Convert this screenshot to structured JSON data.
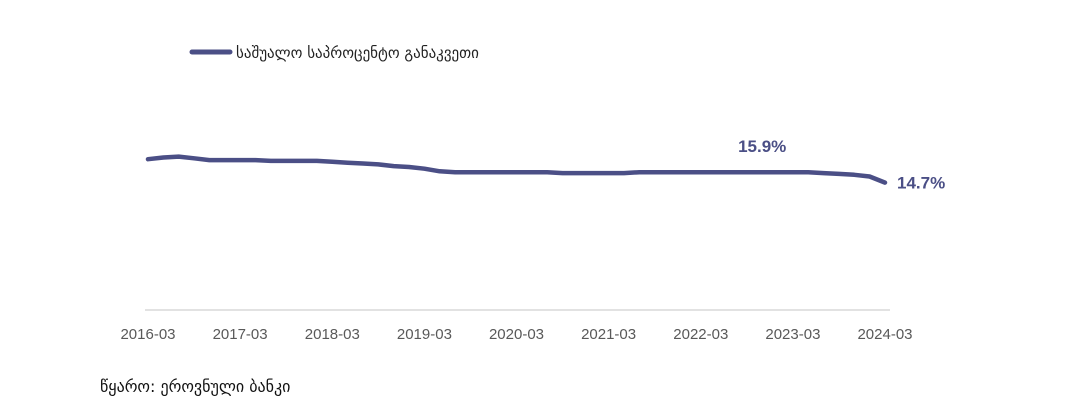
{
  "chart_data": {
    "type": "line",
    "series": [
      {
        "name": "საშუალო საპროცენტო განაკვეთი",
        "color": "#4b4f86",
        "x": [
          "2016-03",
          "2016-05",
          "2016-07",
          "2016-09",
          "2016-11",
          "2017-01",
          "2017-03",
          "2017-05",
          "2017-07",
          "2017-09",
          "2017-11",
          "2018-01",
          "2018-03",
          "2018-05",
          "2018-07",
          "2018-09",
          "2018-11",
          "2019-01",
          "2019-03",
          "2019-05",
          "2019-07",
          "2019-09",
          "2019-11",
          "2020-01",
          "2020-03",
          "2020-05",
          "2020-07",
          "2020-09",
          "2020-11",
          "2021-01",
          "2021-03",
          "2021-05",
          "2021-07",
          "2021-09",
          "2021-11",
          "2022-01",
          "2022-03",
          "2022-05",
          "2022-07",
          "2022-09",
          "2022-11",
          "2023-01",
          "2023-03",
          "2023-05",
          "2023-07",
          "2023-09",
          "2023-11",
          "2024-01",
          "2024-03"
        ],
        "values": [
          17.4,
          17.6,
          17.7,
          17.5,
          17.3,
          17.3,
          17.3,
          17.3,
          17.2,
          17.2,
          17.2,
          17.2,
          17.1,
          17.0,
          16.9,
          16.8,
          16.6,
          16.5,
          16.3,
          16.0,
          15.9,
          15.9,
          15.9,
          15.9,
          15.9,
          15.9,
          15.9,
          15.8,
          15.8,
          15.8,
          15.8,
          15.8,
          15.9,
          15.9,
          15.9,
          15.9,
          15.9,
          15.9,
          15.9,
          15.9,
          15.9,
          15.9,
          15.9,
          15.9,
          15.8,
          15.7,
          15.6,
          15.4,
          14.7
        ]
      }
    ],
    "x_ticks": [
      "2016-03",
      "2017-03",
      "2018-03",
      "2019-03",
      "2020-03",
      "2021-03",
      "2022-03",
      "2023-03",
      "2024-03"
    ],
    "ylim": [
      0,
      30
    ],
    "annotations": [
      {
        "x": "2022-11",
        "text": "15.9%",
        "color": "#4b4f86"
      },
      {
        "x": "2024-03",
        "text": "14.7%",
        "color": "#4b4f86"
      }
    ],
    "legend_position": "top-left",
    "grid": false
  },
  "source_note": "წყარო: ეროვნული ბანკი"
}
